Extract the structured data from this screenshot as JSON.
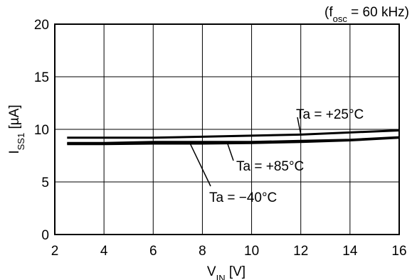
{
  "chart_data": {
    "type": "line",
    "title": "",
    "condition": {
      "prefix": "(f",
      "sub": "osc",
      "suffix": " = 60 kHz)"
    },
    "xlabel": {
      "main": "V",
      "sub": "IN",
      "unit": " [V]"
    },
    "ylabel": {
      "main": "I",
      "sub": "SS1",
      "unit": " [µA]"
    },
    "xlim": [
      2,
      16
    ],
    "ylim": [
      0,
      20
    ],
    "x_ticks": [
      2,
      4,
      6,
      8,
      10,
      12,
      14,
      16
    ],
    "y_ticks": [
      0,
      5,
      10,
      15,
      20
    ],
    "grid": true,
    "series": [
      {
        "name": "Ta = +25°C",
        "x": [
          2.5,
          4,
          6,
          8,
          10,
          12,
          14,
          16
        ],
        "y": [
          9.2,
          9.2,
          9.2,
          9.3,
          9.4,
          9.5,
          9.7,
          9.9
        ]
      },
      {
        "name": "Ta = +85°C",
        "x": [
          2.5,
          4,
          6,
          8,
          10,
          12,
          14,
          16
        ],
        "y": [
          8.7,
          8.7,
          8.8,
          8.8,
          8.8,
          8.9,
          9.0,
          9.25
        ]
      },
      {
        "name": "Ta = −40°C",
        "x": [
          2.5,
          4,
          6,
          8,
          10,
          12,
          14,
          16
        ],
        "y": [
          8.6,
          8.6,
          8.65,
          8.65,
          8.7,
          8.8,
          8.95,
          9.2
        ]
      }
    ]
  }
}
